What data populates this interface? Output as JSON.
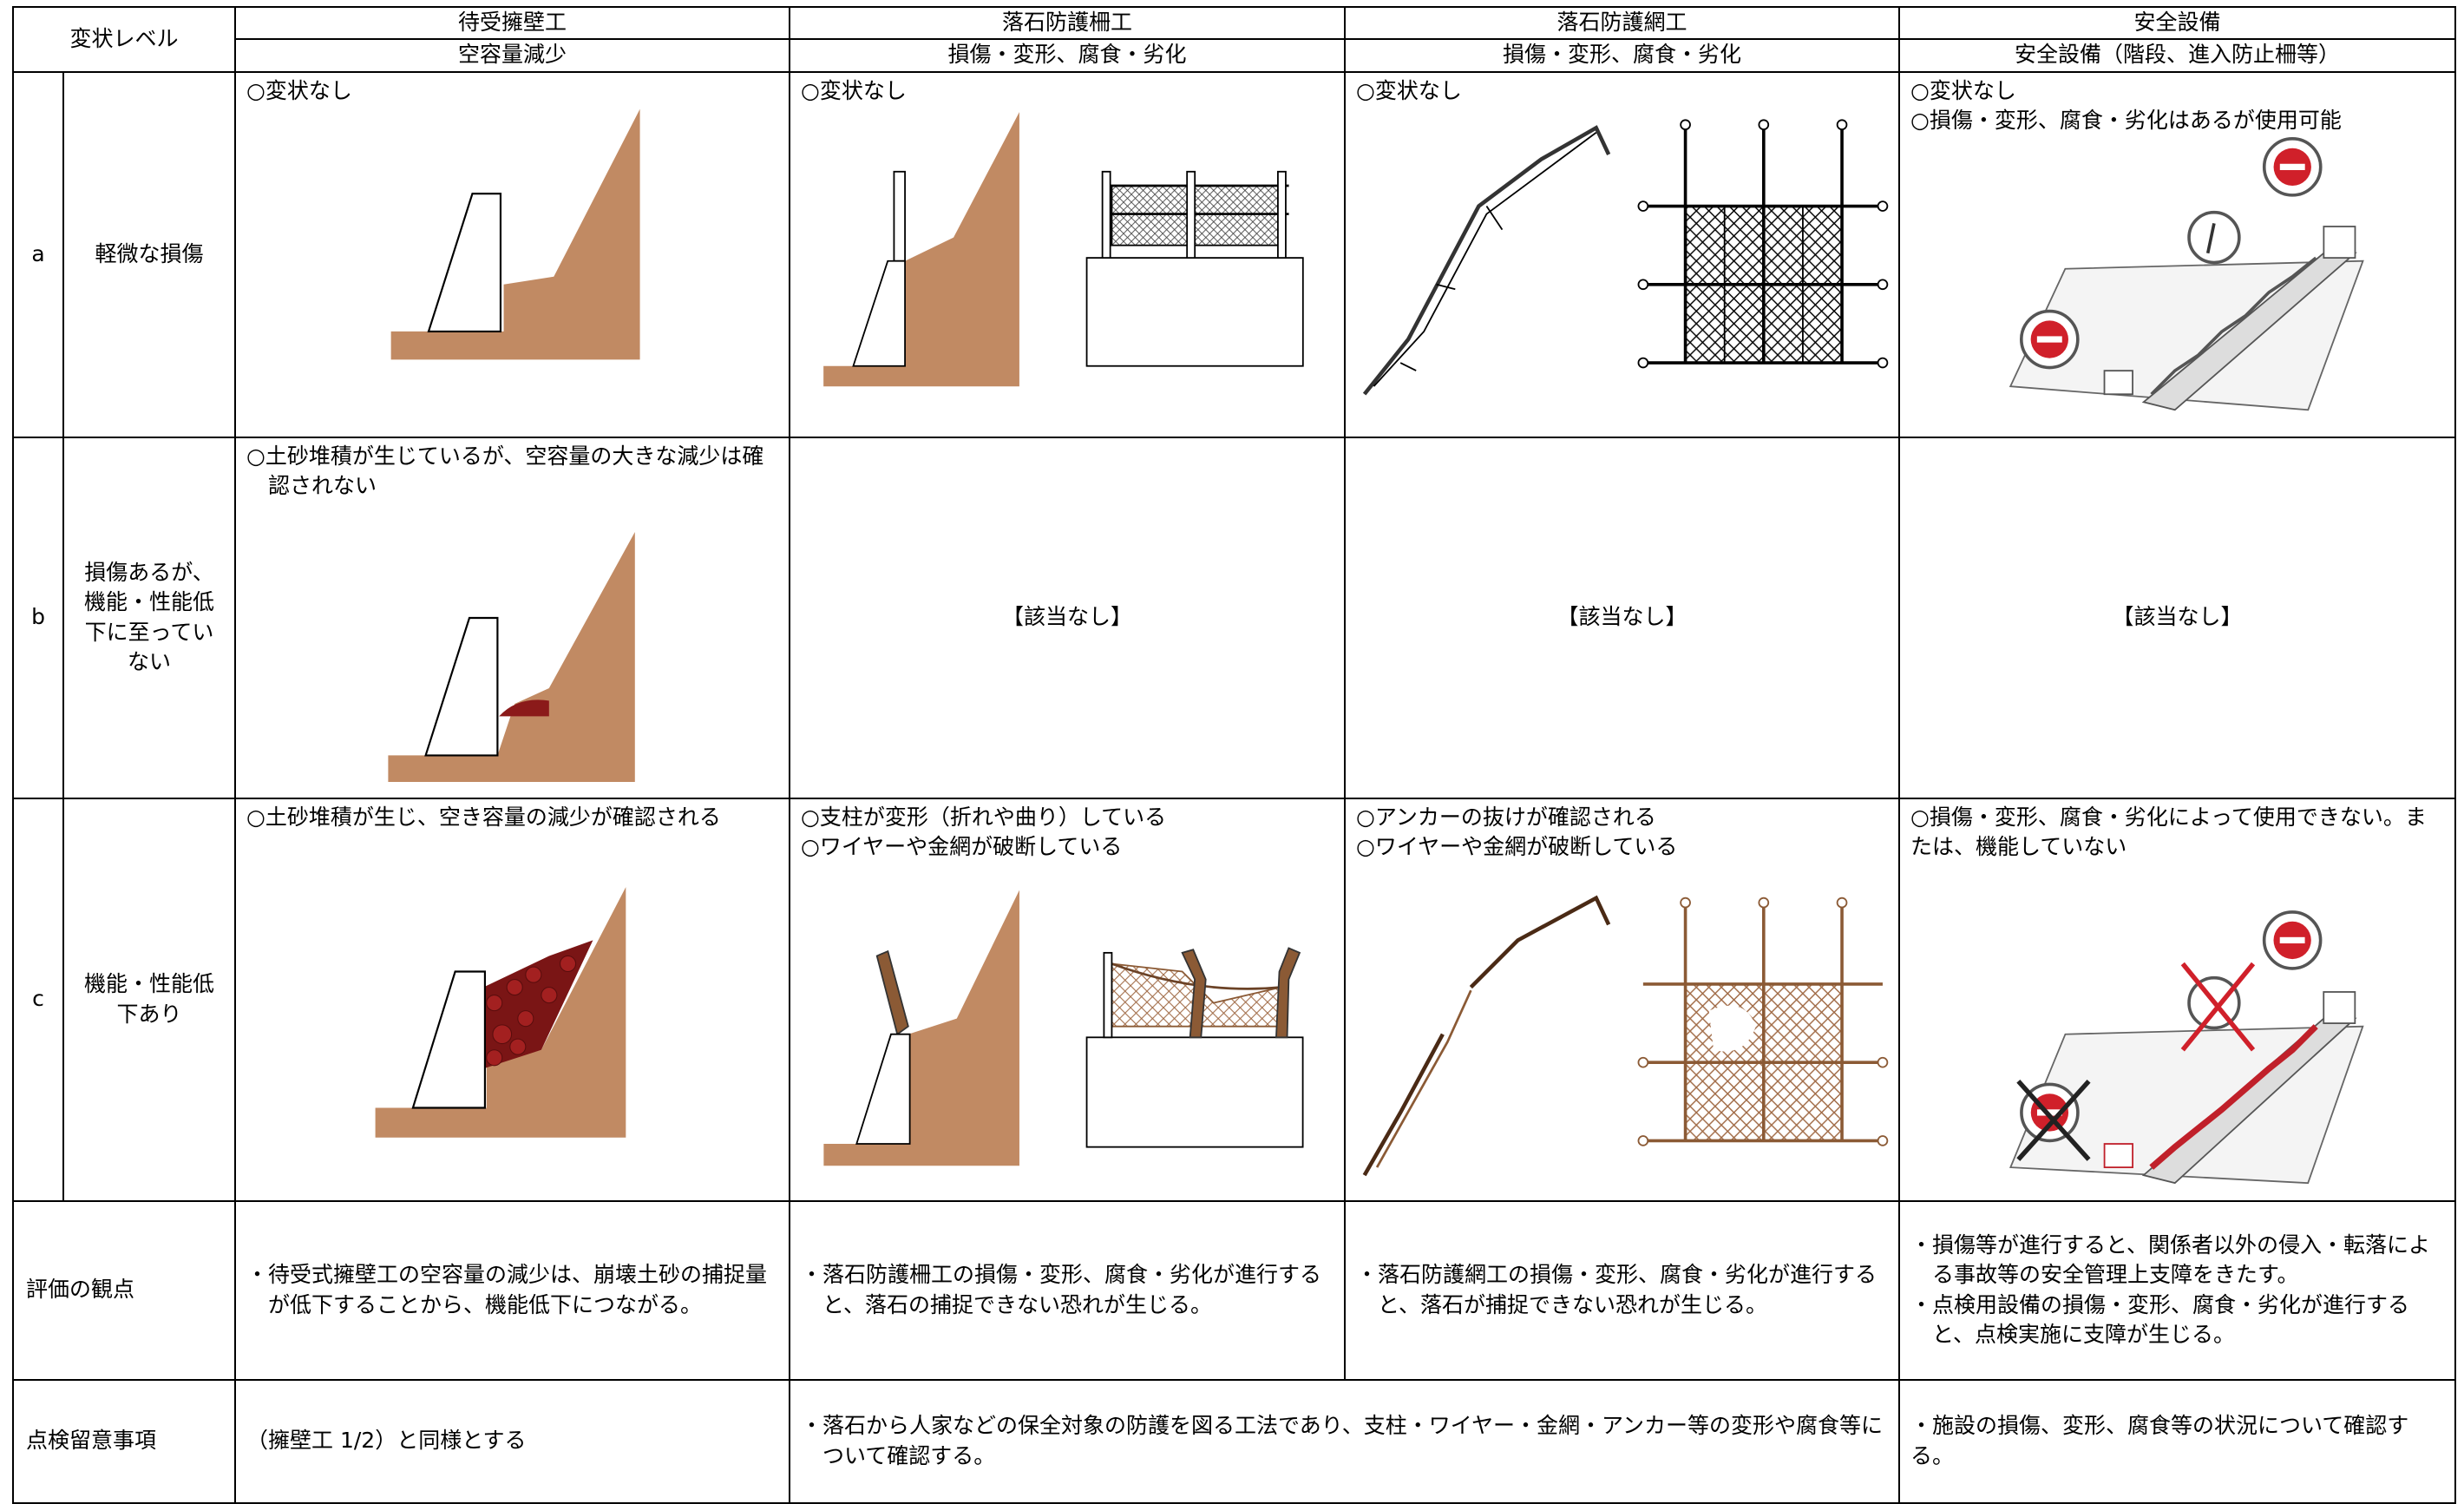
{
  "header": {
    "level": "変状レベル",
    "columns": [
      {
        "title": "待受擁壁工",
        "subtitle": "空容量減少"
      },
      {
        "title": "落石防護柵工",
        "subtitle": "損傷・変形、腐食・劣化"
      },
      {
        "title": "落石防護網工",
        "subtitle": "損傷・変形、腐食・劣化"
      },
      {
        "title": "安全設備",
        "subtitle": "安全設備（階段、進入防止柵等）"
      }
    ]
  },
  "rows": [
    {
      "level": "a",
      "description": "軽微な損傷",
      "cells": [
        [
          "○変状なし"
        ],
        [
          "○変状なし"
        ],
        [
          "○変状なし"
        ],
        [
          "○変状なし",
          "○損傷・変形、腐食・劣化はあるが使用可能"
        ]
      ]
    },
    {
      "level": "b",
      "description": "損傷あるが、機能・性能低下に至っていない",
      "cells": [
        [
          "○土砂堆積が生じているが、空容量の大きな減少は確認されない"
        ],
        [
          "【該当なし】"
        ],
        [
          "【該当なし】"
        ],
        [
          "【該当なし】"
        ]
      ]
    },
    {
      "level": "c",
      "description": "機能・性能低下あり",
      "cells": [
        [
          "○土砂堆積が生じ、空き容量の減少が確認される"
        ],
        [
          "○支柱が変形（折れや曲り）している",
          "○ワイヤーや金網が破断している"
        ],
        [
          "○アンカーの抜けが確認される",
          "○ワイヤーや金網が破断している"
        ],
        [
          "○損傷・変形、腐食・劣化によって使用できない。または、機能していない"
        ]
      ]
    }
  ],
  "evaluation": {
    "label": "評価の観点",
    "cells": [
      [
        "・待受式擁壁工の空容量の減少は、崩壊土砂の捕捉量が低下することから、機能低下につながる。"
      ],
      [
        "・落石防護柵工の損傷・変形、腐食・劣化が進行すると、落石の捕捉できない恐れが生じる。"
      ],
      [
        "・落石防護網工の損傷・変形、腐食・劣化が進行すると、落石が捕捉できない恐れが生じる。"
      ],
      [
        "・損傷等が進行すると、関係者以外の侵入・転落による事故等の安全管理上支障をきたす。",
        "・点検用設備の損傷・変形、腐食・劣化が進行すると、点検実施に支障が生じる。"
      ]
    ]
  },
  "notes": {
    "label": "点検留意事項",
    "cells": [
      "（擁壁工 1/2）と同様とする",
      "・落石から人家などの保全対象の防護を図る工法であり、支柱・ワイヤー・金網・アンカー等の変形や腐食等について確認する。",
      "・施設の損傷、変形、腐食等の状況について確認する。"
    ]
  }
}
